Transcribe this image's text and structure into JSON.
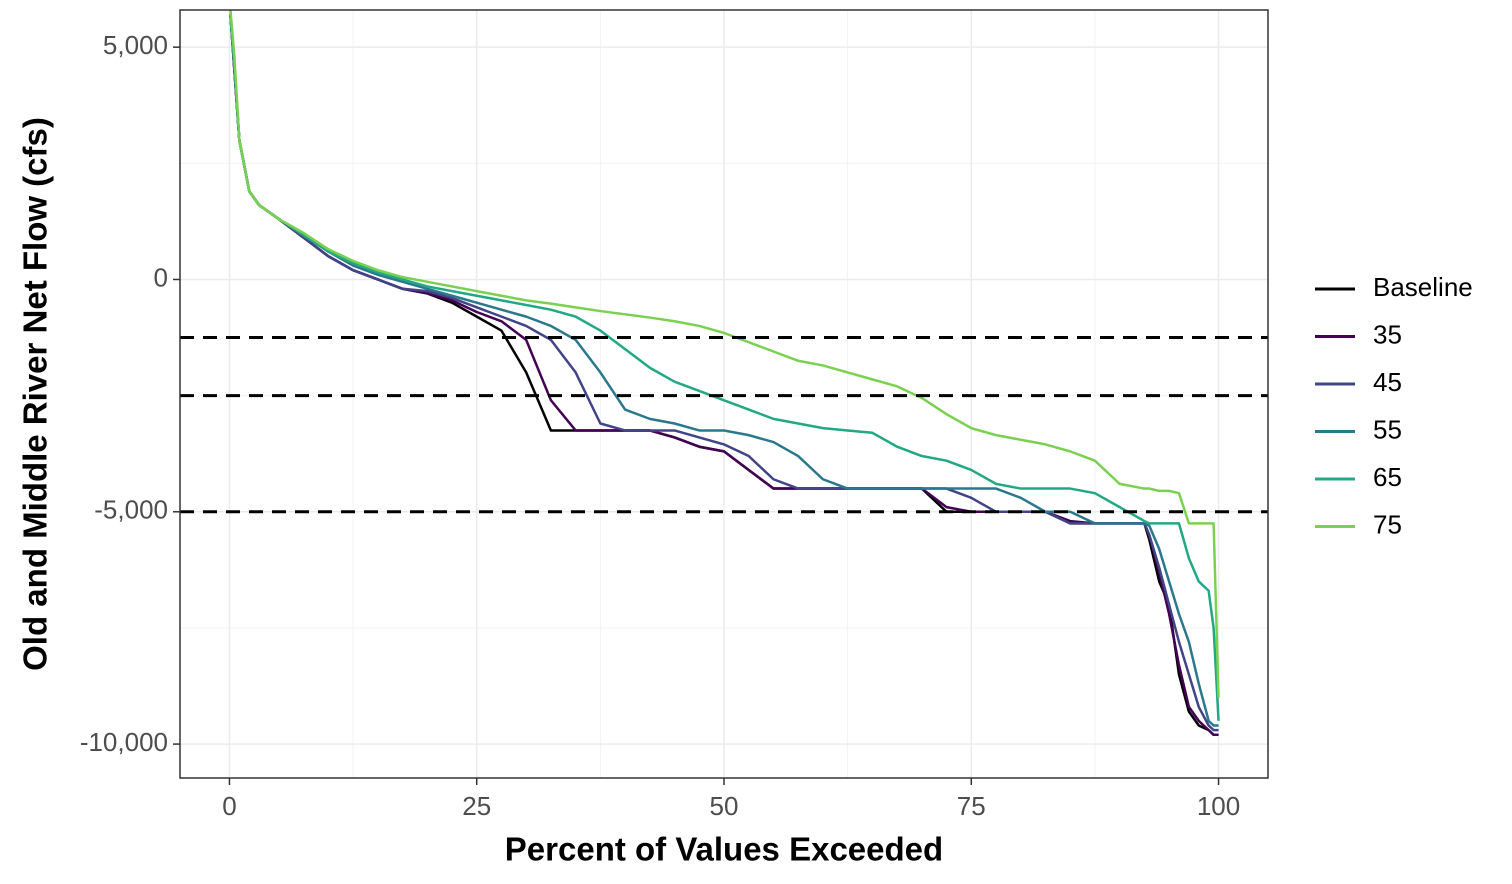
{
  "chart_data": {
    "type": "line",
    "xlabel": "Percent of Values Exceeded",
    "ylabel": "Old and Middle River Net Flow (cfs)",
    "xlim": [
      -5,
      105
    ],
    "ylim": [
      -10730,
      5800
    ],
    "xticks": [
      0,
      25,
      50,
      75,
      100
    ],
    "yticks": [
      {
        "value": 5000,
        "label": "5,000"
      },
      0,
      {
        "value": -5000,
        "label": "-5,000"
      },
      {
        "value": -10000,
        "label": "-10,000"
      }
    ],
    "xminor": [
      12.5,
      37.5,
      62.5,
      87.5
    ],
    "yminor": [
      2500,
      -2500,
      -7500
    ],
    "grid": true,
    "hlines": [
      -1250,
      -2500,
      -5000
    ],
    "legend": "right",
    "x": [
      0.1,
      0.5,
      1,
      2,
      3,
      5,
      7.5,
      10,
      12.5,
      15,
      17.5,
      20,
      22.5,
      25,
      27.5,
      30,
      32.5,
      35,
      37.5,
      40,
      42.5,
      45,
      47.5,
      50,
      52.5,
      55,
      57.5,
      60,
      62.5,
      65,
      67.5,
      70,
      72.5,
      75,
      77.5,
      80,
      82.5,
      85,
      87.5,
      90,
      92.5,
      93,
      94,
      95,
      96,
      97,
      98,
      99,
      99.5,
      100
    ],
    "series": [
      {
        "name": "Baseline",
        "color": "#000000",
        "values": [
          5700,
          4500,
          3000,
          1900,
          1600,
          1300,
          900,
          500,
          200,
          0,
          -200,
          -300,
          -500,
          -800,
          -1100,
          -2000,
          -3250,
          -3250,
          -3250,
          -3250,
          -3250,
          -3400,
          -3600,
          -3700,
          -4100,
          -4500,
          -4500,
          -4500,
          -4500,
          -4500,
          -4500,
          -4500,
          -5000,
          -5000,
          -5000,
          -5000,
          -5000,
          -5250,
          -5250,
          -5250,
          -5250,
          -5600,
          -6500,
          -7000,
          -8500,
          -9300,
          -9600,
          -9700,
          -9800,
          -9800
        ]
      },
      {
        "name": "35",
        "color": "#440154",
        "values": [
          5700,
          4500,
          3000,
          1900,
          1600,
          1300,
          900,
          500,
          200,
          0,
          -200,
          -300,
          -450,
          -700,
          -900,
          -1300,
          -2600,
          -3250,
          -3250,
          -3250,
          -3250,
          -3400,
          -3600,
          -3700,
          -4100,
          -4500,
          -4500,
          -4500,
          -4500,
          -4500,
          -4500,
          -4500,
          -4900,
          -5000,
          -5000,
          -5000,
          -5000,
          -5200,
          -5250,
          -5250,
          -5250,
          -5500,
          -6300,
          -7200,
          -8300,
          -9200,
          -9500,
          -9700,
          -9800,
          -9800
        ]
      },
      {
        "name": "45",
        "color": "#414487",
        "values": [
          5700,
          4500,
          3000,
          1900,
          1600,
          1300,
          900,
          500,
          200,
          0,
          -200,
          -250,
          -400,
          -600,
          -800,
          -1000,
          -1300,
          -2000,
          -3100,
          -3250,
          -3250,
          -3250,
          -3400,
          -3550,
          -3800,
          -4300,
          -4500,
          -4500,
          -4500,
          -4500,
          -4500,
          -4500,
          -4500,
          -4700,
          -5000,
          -5000,
          -5000,
          -5250,
          -5250,
          -5250,
          -5250,
          -5500,
          -6200,
          -7000,
          -7800,
          -8500,
          -9200,
          -9600,
          -9700,
          -9700
        ]
      },
      {
        "name": "55",
        "color": "#2a788e",
        "values": [
          5700,
          4600,
          3000,
          1900,
          1600,
          1300,
          950,
          600,
          300,
          100,
          -50,
          -200,
          -350,
          -500,
          -650,
          -800,
          -1000,
          -1300,
          -2000,
          -2800,
          -3000,
          -3100,
          -3250,
          -3250,
          -3350,
          -3500,
          -3800,
          -4300,
          -4500,
          -4500,
          -4500,
          -4500,
          -4500,
          -4500,
          -4500,
          -4700,
          -5000,
          -5000,
          -5250,
          -5250,
          -5250,
          -5300,
          -5800,
          -6500,
          -7200,
          -7800,
          -8700,
          -9500,
          -9600,
          -9600
        ]
      },
      {
        "name": "65",
        "color": "#22a884",
        "values": [
          5700,
          4600,
          3000,
          1900,
          1600,
          1300,
          950,
          600,
          350,
          150,
          0,
          -150,
          -250,
          -350,
          -450,
          -550,
          -650,
          -800,
          -1100,
          -1500,
          -1900,
          -2200,
          -2400,
          -2600,
          -2800,
          -3000,
          -3100,
          -3200,
          -3250,
          -3300,
          -3600,
          -3800,
          -3900,
          -4100,
          -4400,
          -4500,
          -4500,
          -4500,
          -4600,
          -4900,
          -5200,
          -5250,
          -5250,
          -5250,
          -5250,
          -6000,
          -6500,
          -6700,
          -7500,
          -9500
        ]
      },
      {
        "name": "75",
        "color": "#7ad151",
        "values": [
          5800,
          4800,
          3000,
          1900,
          1600,
          1300,
          1000,
          650,
          400,
          200,
          50,
          -50,
          -150,
          -250,
          -350,
          -450,
          -520,
          -600,
          -680,
          -750,
          -820,
          -900,
          -1000,
          -1150,
          -1350,
          -1550,
          -1750,
          -1850,
          -2000,
          -2150,
          -2300,
          -2550,
          -2900,
          -3200,
          -3350,
          -3450,
          -3550,
          -3700,
          -3900,
          -4400,
          -4500,
          -4500,
          -4550,
          -4550,
          -4600,
          -5250,
          -5250,
          -5250,
          -5250,
          -9000
        ]
      }
    ]
  }
}
